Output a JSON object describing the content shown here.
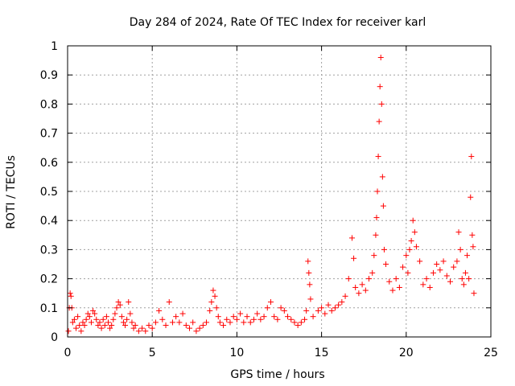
{
  "chart_data": {
    "type": "scatter",
    "title": "Day 284 of 2024, Rate Of TEC Index for receiver karl",
    "xlabel": "GPS time / hours",
    "ylabel": "ROTI / TECUs",
    "xlim": [
      0,
      25
    ],
    "ylim": [
      0,
      1
    ],
    "xticks": [
      "0",
      "5",
      "10",
      "15",
      "20",
      "25"
    ],
    "xtick_values": [
      0,
      5,
      10,
      15,
      20,
      25
    ],
    "yticks": [
      "0",
      "0.1",
      "0.2",
      "0.3",
      "0.4",
      "0.5",
      "0.6",
      "0.7",
      "0.8",
      "0.9",
      "1"
    ],
    "ytick_values": [
      0,
      0.1,
      0.2,
      0.3,
      0.4,
      0.5,
      0.6,
      0.7,
      0.8,
      0.9,
      1
    ],
    "grid": true,
    "marker": "+",
    "color": "#ff0000",
    "series": [
      {
        "name": "ROTI",
        "points": [
          [
            0.05,
            0.02
          ],
          [
            0.1,
            0.1
          ],
          [
            0.15,
            0.15
          ],
          [
            0.2,
            0.14
          ],
          [
            0.25,
            0.1
          ],
          [
            0.3,
            0.05
          ],
          [
            0.4,
            0.06
          ],
          [
            0.5,
            0.03
          ],
          [
            0.6,
            0.07
          ],
          [
            0.7,
            0.04
          ],
          [
            0.8,
            0.02
          ],
          [
            0.9,
            0.05
          ],
          [
            1.0,
            0.04
          ],
          [
            1.1,
            0.06
          ],
          [
            1.2,
            0.08
          ],
          [
            1.3,
            0.07
          ],
          [
            1.4,
            0.05
          ],
          [
            1.5,
            0.09
          ],
          [
            1.6,
            0.08
          ],
          [
            1.7,
            0.06
          ],
          [
            1.8,
            0.04
          ],
          [
            1.9,
            0.05
          ],
          [
            2.0,
            0.03
          ],
          [
            2.1,
            0.06
          ],
          [
            2.2,
            0.04
          ],
          [
            2.3,
            0.07
          ],
          [
            2.4,
            0.05
          ],
          [
            2.5,
            0.03
          ],
          [
            2.6,
            0.04
          ],
          [
            2.7,
            0.06
          ],
          [
            2.8,
            0.08
          ],
          [
            2.9,
            0.1
          ],
          [
            3.0,
            0.12
          ],
          [
            3.1,
            0.11
          ],
          [
            3.2,
            0.07
          ],
          [
            3.3,
            0.05
          ],
          [
            3.4,
            0.04
          ],
          [
            3.5,
            0.06
          ],
          [
            3.6,
            0.12
          ],
          [
            3.7,
            0.08
          ],
          [
            3.8,
            0.05
          ],
          [
            3.9,
            0.03
          ],
          [
            4.0,
            0.04
          ],
          [
            4.2,
            0.02
          ],
          [
            4.4,
            0.03
          ],
          [
            4.6,
            0.02
          ],
          [
            4.8,
            0.04
          ],
          [
            5.0,
            0.03
          ],
          [
            5.2,
            0.05
          ],
          [
            5.4,
            0.09
          ],
          [
            5.6,
            0.06
          ],
          [
            5.8,
            0.04
          ],
          [
            6.0,
            0.12
          ],
          [
            6.2,
            0.05
          ],
          [
            6.4,
            0.07
          ],
          [
            6.6,
            0.05
          ],
          [
            6.8,
            0.08
          ],
          [
            7.0,
            0.04
          ],
          [
            7.2,
            0.03
          ],
          [
            7.4,
            0.05
          ],
          [
            7.6,
            0.02
          ],
          [
            7.8,
            0.03
          ],
          [
            8.0,
            0.04
          ],
          [
            8.2,
            0.05
          ],
          [
            8.4,
            0.09
          ],
          [
            8.5,
            0.12
          ],
          [
            8.6,
            0.16
          ],
          [
            8.7,
            0.14
          ],
          [
            8.8,
            0.1
          ],
          [
            8.9,
            0.07
          ],
          [
            9.0,
            0.05
          ],
          [
            9.2,
            0.04
          ],
          [
            9.4,
            0.06
          ],
          [
            9.6,
            0.05
          ],
          [
            9.8,
            0.07
          ],
          [
            10.0,
            0.06
          ],
          [
            10.2,
            0.08
          ],
          [
            10.4,
            0.05
          ],
          [
            10.6,
            0.07
          ],
          [
            10.8,
            0.05
          ],
          [
            11.0,
            0.06
          ],
          [
            11.2,
            0.08
          ],
          [
            11.4,
            0.06
          ],
          [
            11.6,
            0.07
          ],
          [
            11.8,
            0.1
          ],
          [
            12.0,
            0.12
          ],
          [
            12.2,
            0.07
          ],
          [
            12.4,
            0.06
          ],
          [
            12.6,
            0.1
          ],
          [
            12.8,
            0.09
          ],
          [
            13.0,
            0.07
          ],
          [
            13.2,
            0.06
          ],
          [
            13.4,
            0.05
          ],
          [
            13.6,
            0.04
          ],
          [
            13.8,
            0.05
          ],
          [
            14.0,
            0.06
          ],
          [
            14.1,
            0.09
          ],
          [
            14.2,
            0.26
          ],
          [
            14.25,
            0.22
          ],
          [
            14.3,
            0.18
          ],
          [
            14.35,
            0.13
          ],
          [
            14.5,
            0.07
          ],
          [
            14.8,
            0.09
          ],
          [
            15.0,
            0.1
          ],
          [
            15.2,
            0.08
          ],
          [
            15.4,
            0.11
          ],
          [
            15.6,
            0.09
          ],
          [
            15.8,
            0.1
          ],
          [
            16.0,
            0.11
          ],
          [
            16.2,
            0.12
          ],
          [
            16.4,
            0.14
          ],
          [
            16.6,
            0.2
          ],
          [
            16.8,
            0.34
          ],
          [
            16.9,
            0.27
          ],
          [
            17.0,
            0.17
          ],
          [
            17.2,
            0.15
          ],
          [
            17.4,
            0.18
          ],
          [
            17.6,
            0.16
          ],
          [
            17.8,
            0.2
          ],
          [
            18.0,
            0.22
          ],
          [
            18.1,
            0.28
          ],
          [
            18.2,
            0.35
          ],
          [
            18.25,
            0.41
          ],
          [
            18.3,
            0.5
          ],
          [
            18.35,
            0.62
          ],
          [
            18.4,
            0.74
          ],
          [
            18.45,
            0.86
          ],
          [
            18.5,
            0.96
          ],
          [
            18.55,
            0.8
          ],
          [
            18.6,
            0.55
          ],
          [
            18.65,
            0.45
          ],
          [
            18.7,
            0.3
          ],
          [
            18.8,
            0.25
          ],
          [
            19.0,
            0.19
          ],
          [
            19.2,
            0.16
          ],
          [
            19.4,
            0.2
          ],
          [
            19.6,
            0.17
          ],
          [
            19.8,
            0.24
          ],
          [
            20.0,
            0.28
          ],
          [
            20.1,
            0.22
          ],
          [
            20.2,
            0.3
          ],
          [
            20.3,
            0.33
          ],
          [
            20.4,
            0.4
          ],
          [
            20.5,
            0.36
          ],
          [
            20.6,
            0.31
          ],
          [
            20.8,
            0.26
          ],
          [
            21.0,
            0.18
          ],
          [
            21.2,
            0.2
          ],
          [
            21.4,
            0.17
          ],
          [
            21.6,
            0.22
          ],
          [
            21.8,
            0.25
          ],
          [
            22.0,
            0.23
          ],
          [
            22.2,
            0.26
          ],
          [
            22.4,
            0.21
          ],
          [
            22.6,
            0.19
          ],
          [
            22.8,
            0.24
          ],
          [
            23.0,
            0.26
          ],
          [
            23.1,
            0.36
          ],
          [
            23.2,
            0.3
          ],
          [
            23.3,
            0.2
          ],
          [
            23.4,
            0.18
          ],
          [
            23.5,
            0.22
          ],
          [
            23.6,
            0.28
          ],
          [
            23.7,
            0.2
          ],
          [
            23.8,
            0.48
          ],
          [
            23.85,
            0.62
          ],
          [
            23.9,
            0.35
          ],
          [
            23.95,
            0.31
          ],
          [
            24.0,
            0.15
          ]
        ]
      }
    ]
  }
}
